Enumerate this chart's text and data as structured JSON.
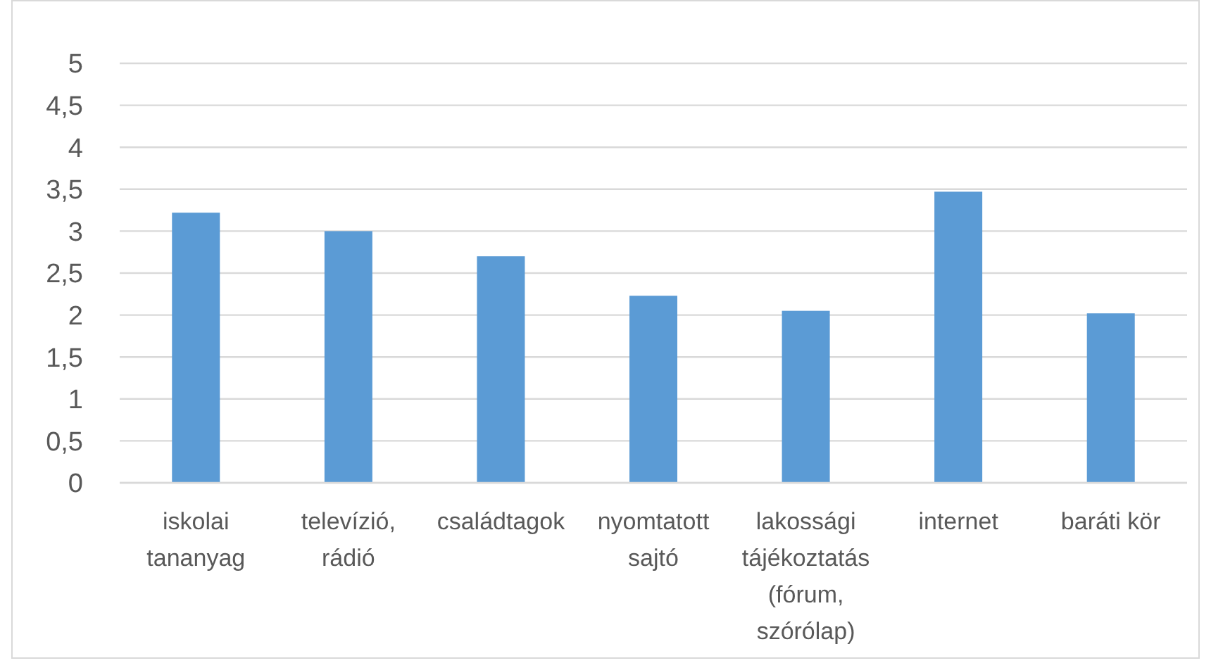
{
  "chart_data": {
    "type": "bar",
    "categories": [
      "iskolai tananyag",
      "televízió, rádió",
      "családtagok",
      "nyomtatott sajtó",
      "lakossági tájékoztatás (fórum, szórólap)",
      "internet",
      "baráti kör"
    ],
    "values": [
      3.22,
      3.0,
      2.7,
      2.23,
      2.05,
      3.47,
      2.02
    ],
    "color": "#5b9bd5",
    "ylim": [
      0,
      5
    ],
    "yticks": [
      0,
      {
        "value": 0.5,
        "label": "0,5"
      },
      1,
      {
        "value": 1.5,
        "label": "1,5"
      },
      2,
      {
        "value": 2.5,
        "label": "2,5"
      },
      3,
      {
        "value": 3.5,
        "label": "3,5"
      },
      4,
      {
        "value": 4.5,
        "label": "4,5"
      },
      5
    ],
    "grid": "y"
  }
}
